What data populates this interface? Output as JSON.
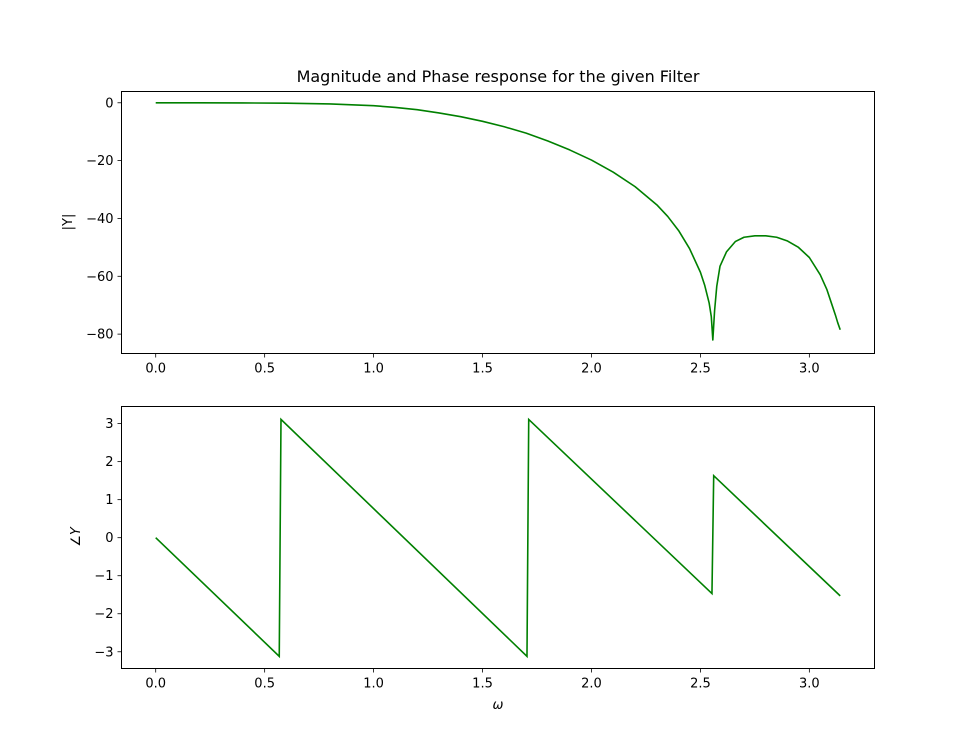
{
  "chart_data": [
    {
      "type": "line",
      "title": "Magnitude and Phase response for the given Filter",
      "xlabel": "",
      "ylabel": "|Y|",
      "xlim": [
        -0.157,
        3.299
      ],
      "ylim": [
        -86.7,
        3.9
      ],
      "xticks": [
        "0.0",
        "0.5",
        "1.0",
        "1.5",
        "2.0",
        "2.5",
        "3.0"
      ],
      "xtick_values": [
        0,
        0.5,
        1.0,
        1.5,
        2.0,
        2.5,
        3.0
      ],
      "yticks": [
        "0",
        "−20",
        "−40",
        "−60",
        "−80"
      ],
      "ytick_values": [
        0,
        -20,
        -40,
        -60,
        -80
      ],
      "grid": false,
      "colors": {
        "line": "#008000"
      },
      "series": [
        {
          "x": [
            0,
            0.2,
            0.4,
            0.6,
            0.8,
            1.0,
            1.1,
            1.2,
            1.3,
            1.4,
            1.5,
            1.6,
            1.7,
            1.8,
            1.9,
            2.0,
            2.1,
            2.2,
            2.3,
            2.35,
            2.4,
            2.45,
            2.5,
            2.52,
            2.54,
            2.55,
            2.557,
            2.565,
            2.575,
            2.59,
            2.62,
            2.66,
            2.7,
            2.75,
            2.8,
            2.85,
            2.9,
            2.95,
            3.0,
            3.05,
            3.08,
            3.1,
            3.12,
            3.13,
            3.1416
          ],
          "y": [
            0,
            0,
            -0.05,
            -0.15,
            -0.4,
            -1.0,
            -1.6,
            -2.4,
            -3.5,
            -4.8,
            -6.4,
            -8.3,
            -10.5,
            -13.2,
            -16.3,
            -19.8,
            -24.0,
            -29.0,
            -35.3,
            -39.3,
            -44.2,
            -50.4,
            -58.6,
            -63.2,
            -69.2,
            -74.0,
            -82.0,
            -72.0,
            -63.5,
            -56.5,
            -51.5,
            -48.0,
            -46.5,
            -46.0,
            -46.0,
            -46.5,
            -47.8,
            -50.0,
            -53.5,
            -59.5,
            -64.5,
            -69.0,
            -73.5,
            -76.0,
            -78.5
          ]
        }
      ]
    },
    {
      "type": "line",
      "title": "",
      "xlabel": "ω",
      "ylabel": "∠Y",
      "xlim": [
        -0.157,
        3.299
      ],
      "ylim": [
        -3.44,
        3.45
      ],
      "xticks": [
        "0.0",
        "0.5",
        "1.0",
        "1.5",
        "2.0",
        "2.5",
        "3.0"
      ],
      "xtick_values": [
        0,
        0.5,
        1.0,
        1.5,
        2.0,
        2.5,
        3.0
      ],
      "yticks": [
        "3",
        "2",
        "1",
        "0",
        "−1",
        "−2",
        "−3"
      ],
      "ytick_values": [
        3,
        2,
        1,
        0,
        -1,
        -2,
        -3
      ],
      "grid": false,
      "colors": {
        "line": "#008000"
      },
      "series": [
        {
          "x": [
            0,
            0.567,
            0.575,
            1.704,
            1.712,
            2.553,
            2.561,
            3.1416
          ],
          "y": [
            0,
            -3.12,
            3.11,
            -3.12,
            3.11,
            -1.47,
            1.63,
            -1.53
          ]
        }
      ]
    }
  ]
}
